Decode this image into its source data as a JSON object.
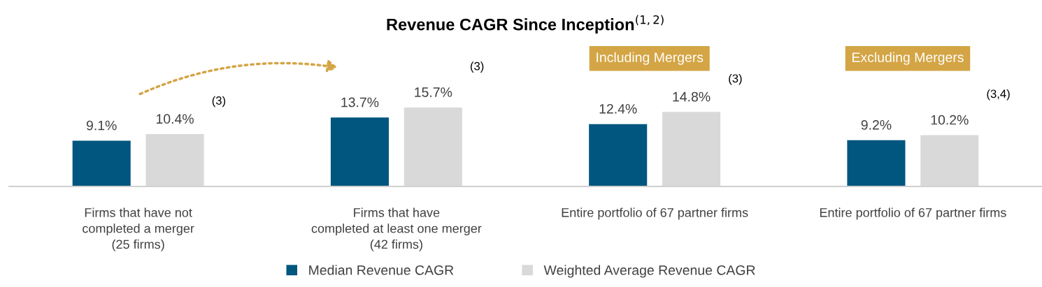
{
  "chart_data": {
    "type": "bar",
    "title": "Revenue CAGR Since Inception$^{(1,2)}$",
    "categories": [
      "Firms that have not\ncompleted a merger\n(25 firms)",
      "Firms that have\ncompleted at least one merger\n(42 firms)",
      "Entire portfolio of 67 partner firms",
      "Entire portfolio of 67 partner firms"
    ],
    "series": [
      {
        "name": "Median Revenue CAGR",
        "color": "#00567f",
        "values": [
          9.1,
          13.7,
          12.4,
          9.2
        ],
        "value_labels": [
          "9.1%",
          "13.7%",
          "12.4%",
          "9.2%"
        ]
      },
      {
        "name": "Weighted Average Revenue CAGR",
        "color": "#d9d9d9",
        "values": [
          10.4,
          15.7,
          14.8,
          10.2
        ],
        "value_labels": [
          "10.4%",
          "15.7%",
          "14.8%",
          "10.2%"
        ]
      }
    ],
    "annotations": [
      "(3)",
      "(3)",
      "(3)",
      "(3,4)",
      "Including Mergers",
      "Excluding Mergers"
    ],
    "legend": "bottom",
    "grid": false
  }
}
